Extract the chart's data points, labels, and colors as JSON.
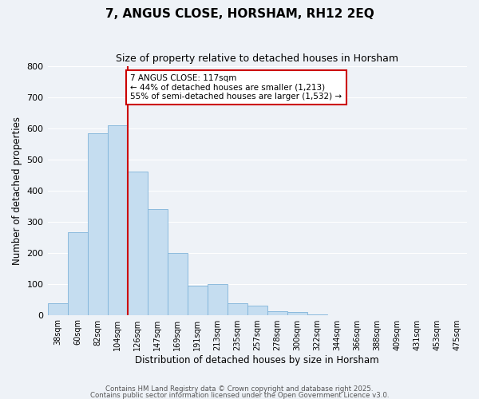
{
  "title": "7, ANGUS CLOSE, HORSHAM, RH12 2EQ",
  "subtitle": "Size of property relative to detached houses in Horsham",
  "xlabel": "Distribution of detached houses by size in Horsham",
  "ylabel": "Number of detached properties",
  "bar_color": "#c5ddf0",
  "bar_edge_color": "#7fb3d9",
  "background_color": "#eef2f7",
  "grid_color": "#ffffff",
  "bin_labels": [
    "38sqm",
    "60sqm",
    "82sqm",
    "104sqm",
    "126sqm",
    "147sqm",
    "169sqm",
    "191sqm",
    "213sqm",
    "235sqm",
    "257sqm",
    "278sqm",
    "300sqm",
    "322sqm",
    "344sqm",
    "366sqm",
    "388sqm",
    "409sqm",
    "431sqm",
    "453sqm",
    "475sqm"
  ],
  "bar_heights": [
    37,
    265,
    585,
    610,
    460,
    340,
    200,
    93,
    100,
    37,
    30,
    12,
    10,
    2,
    0,
    0,
    0,
    0,
    0,
    0,
    0
  ],
  "ylim": [
    0,
    800
  ],
  "yticks": [
    0,
    100,
    200,
    300,
    400,
    500,
    600,
    700,
    800
  ],
  "annotation_title": "7 ANGUS CLOSE: 117sqm",
  "annotation_line1": "← 44% of detached houses are smaller (1,213)",
  "annotation_line2": "55% of semi-detached houses are larger (1,532) →",
  "annotation_box_color": "#ffffff",
  "annotation_box_edge_color": "#cc0000",
  "property_line_color": "#cc0000",
  "footnote1": "Contains HM Land Registry data © Crown copyright and database right 2025.",
  "footnote2": "Contains public sector information licensed under the Open Government Licence v3.0."
}
